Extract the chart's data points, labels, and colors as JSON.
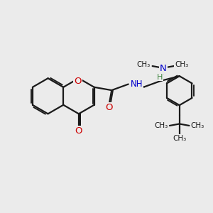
{
  "bg": "#ebebeb",
  "lc": "#1a1a1a",
  "lw": 1.6,
  "fs": 8.5,
  "O_color": "#cc0000",
  "N_color": "#0000cc",
  "H_color": "#448844",
  "xlim": [
    0,
    10
  ],
  "ylim": [
    0,
    10
  ]
}
